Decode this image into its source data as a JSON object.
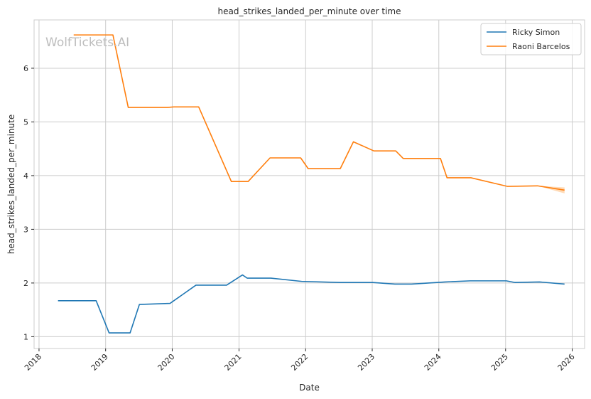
{
  "chart_data": {
    "type": "line",
    "title": "head_strikes_landed_per_minute over time",
    "xlabel": "Date",
    "ylabel": "head_strikes_landed_per_minute",
    "watermark": "WolfTickets.AI",
    "x_ticks": [
      "2018",
      "2019",
      "2020",
      "2021",
      "2022",
      "2023",
      "2024",
      "2025",
      "2026"
    ],
    "y_ticks": [
      1,
      2,
      3,
      4,
      5,
      6
    ],
    "xlim": [
      "2017-12-05",
      "2026-03-10"
    ],
    "ylim": [
      0.78,
      6.9
    ],
    "grid": true,
    "legend_position": "top-right",
    "series": [
      {
        "name": "Ricky Simon",
        "color": "#1f77b4",
        "points": [
          [
            "2018-04-15",
            1.67
          ],
          [
            "2018-11-10",
            1.67
          ],
          [
            "2019-01-20",
            1.07
          ],
          [
            "2019-05-15",
            1.07
          ],
          [
            "2019-07-05",
            1.6
          ],
          [
            "2019-12-20",
            1.62
          ],
          [
            "2020-05-10",
            1.96
          ],
          [
            "2020-10-25",
            1.96
          ],
          [
            "2021-01-20",
            2.15
          ],
          [
            "2021-02-15",
            2.09
          ],
          [
            "2021-06-25",
            2.09
          ],
          [
            "2021-12-10",
            2.03
          ],
          [
            "2022-07-10",
            2.01
          ],
          [
            "2023-01-05",
            2.01
          ],
          [
            "2023-05-05",
            1.98
          ],
          [
            "2023-08-05",
            1.98
          ],
          [
            "2024-02-05",
            2.02
          ],
          [
            "2024-06-20",
            2.04
          ],
          [
            "2025-01-05",
            2.04
          ],
          [
            "2025-02-20",
            2.01
          ],
          [
            "2025-07-05",
            2.02
          ],
          [
            "2025-11-20",
            1.98
          ]
        ]
      },
      {
        "name": "Raoni Barcelos",
        "color": "#ff7f0e",
        "band_color": "#ffbb78",
        "points": [
          [
            "2018-07-10",
            6.62
          ],
          [
            "2019-02-10",
            6.62
          ],
          [
            "2019-05-05",
            5.27
          ],
          [
            "2019-12-05",
            5.27
          ],
          [
            "2020-01-10",
            5.28
          ],
          [
            "2020-05-25",
            5.28
          ],
          [
            "2020-11-20",
            3.89
          ],
          [
            "2021-02-20",
            3.89
          ],
          [
            "2021-06-20",
            4.33
          ],
          [
            "2021-12-05",
            4.33
          ],
          [
            "2022-01-15",
            4.13
          ],
          [
            "2022-07-10",
            4.13
          ],
          [
            "2022-09-20",
            4.63
          ],
          [
            "2023-01-10",
            4.46
          ],
          [
            "2023-05-10",
            4.46
          ],
          [
            "2023-06-20",
            4.32
          ],
          [
            "2024-01-10",
            4.32
          ],
          [
            "2024-02-15",
            3.96
          ],
          [
            "2024-06-25",
            3.96
          ],
          [
            "2025-01-10",
            3.8
          ],
          [
            "2025-06-25",
            3.81
          ],
          [
            "2025-11-20",
            3.73
          ]
        ],
        "band": [
          [
            "2025-06-25",
            3.81,
            3.81
          ],
          [
            "2025-11-20",
            3.67,
            3.78
          ]
        ]
      }
    ]
  }
}
